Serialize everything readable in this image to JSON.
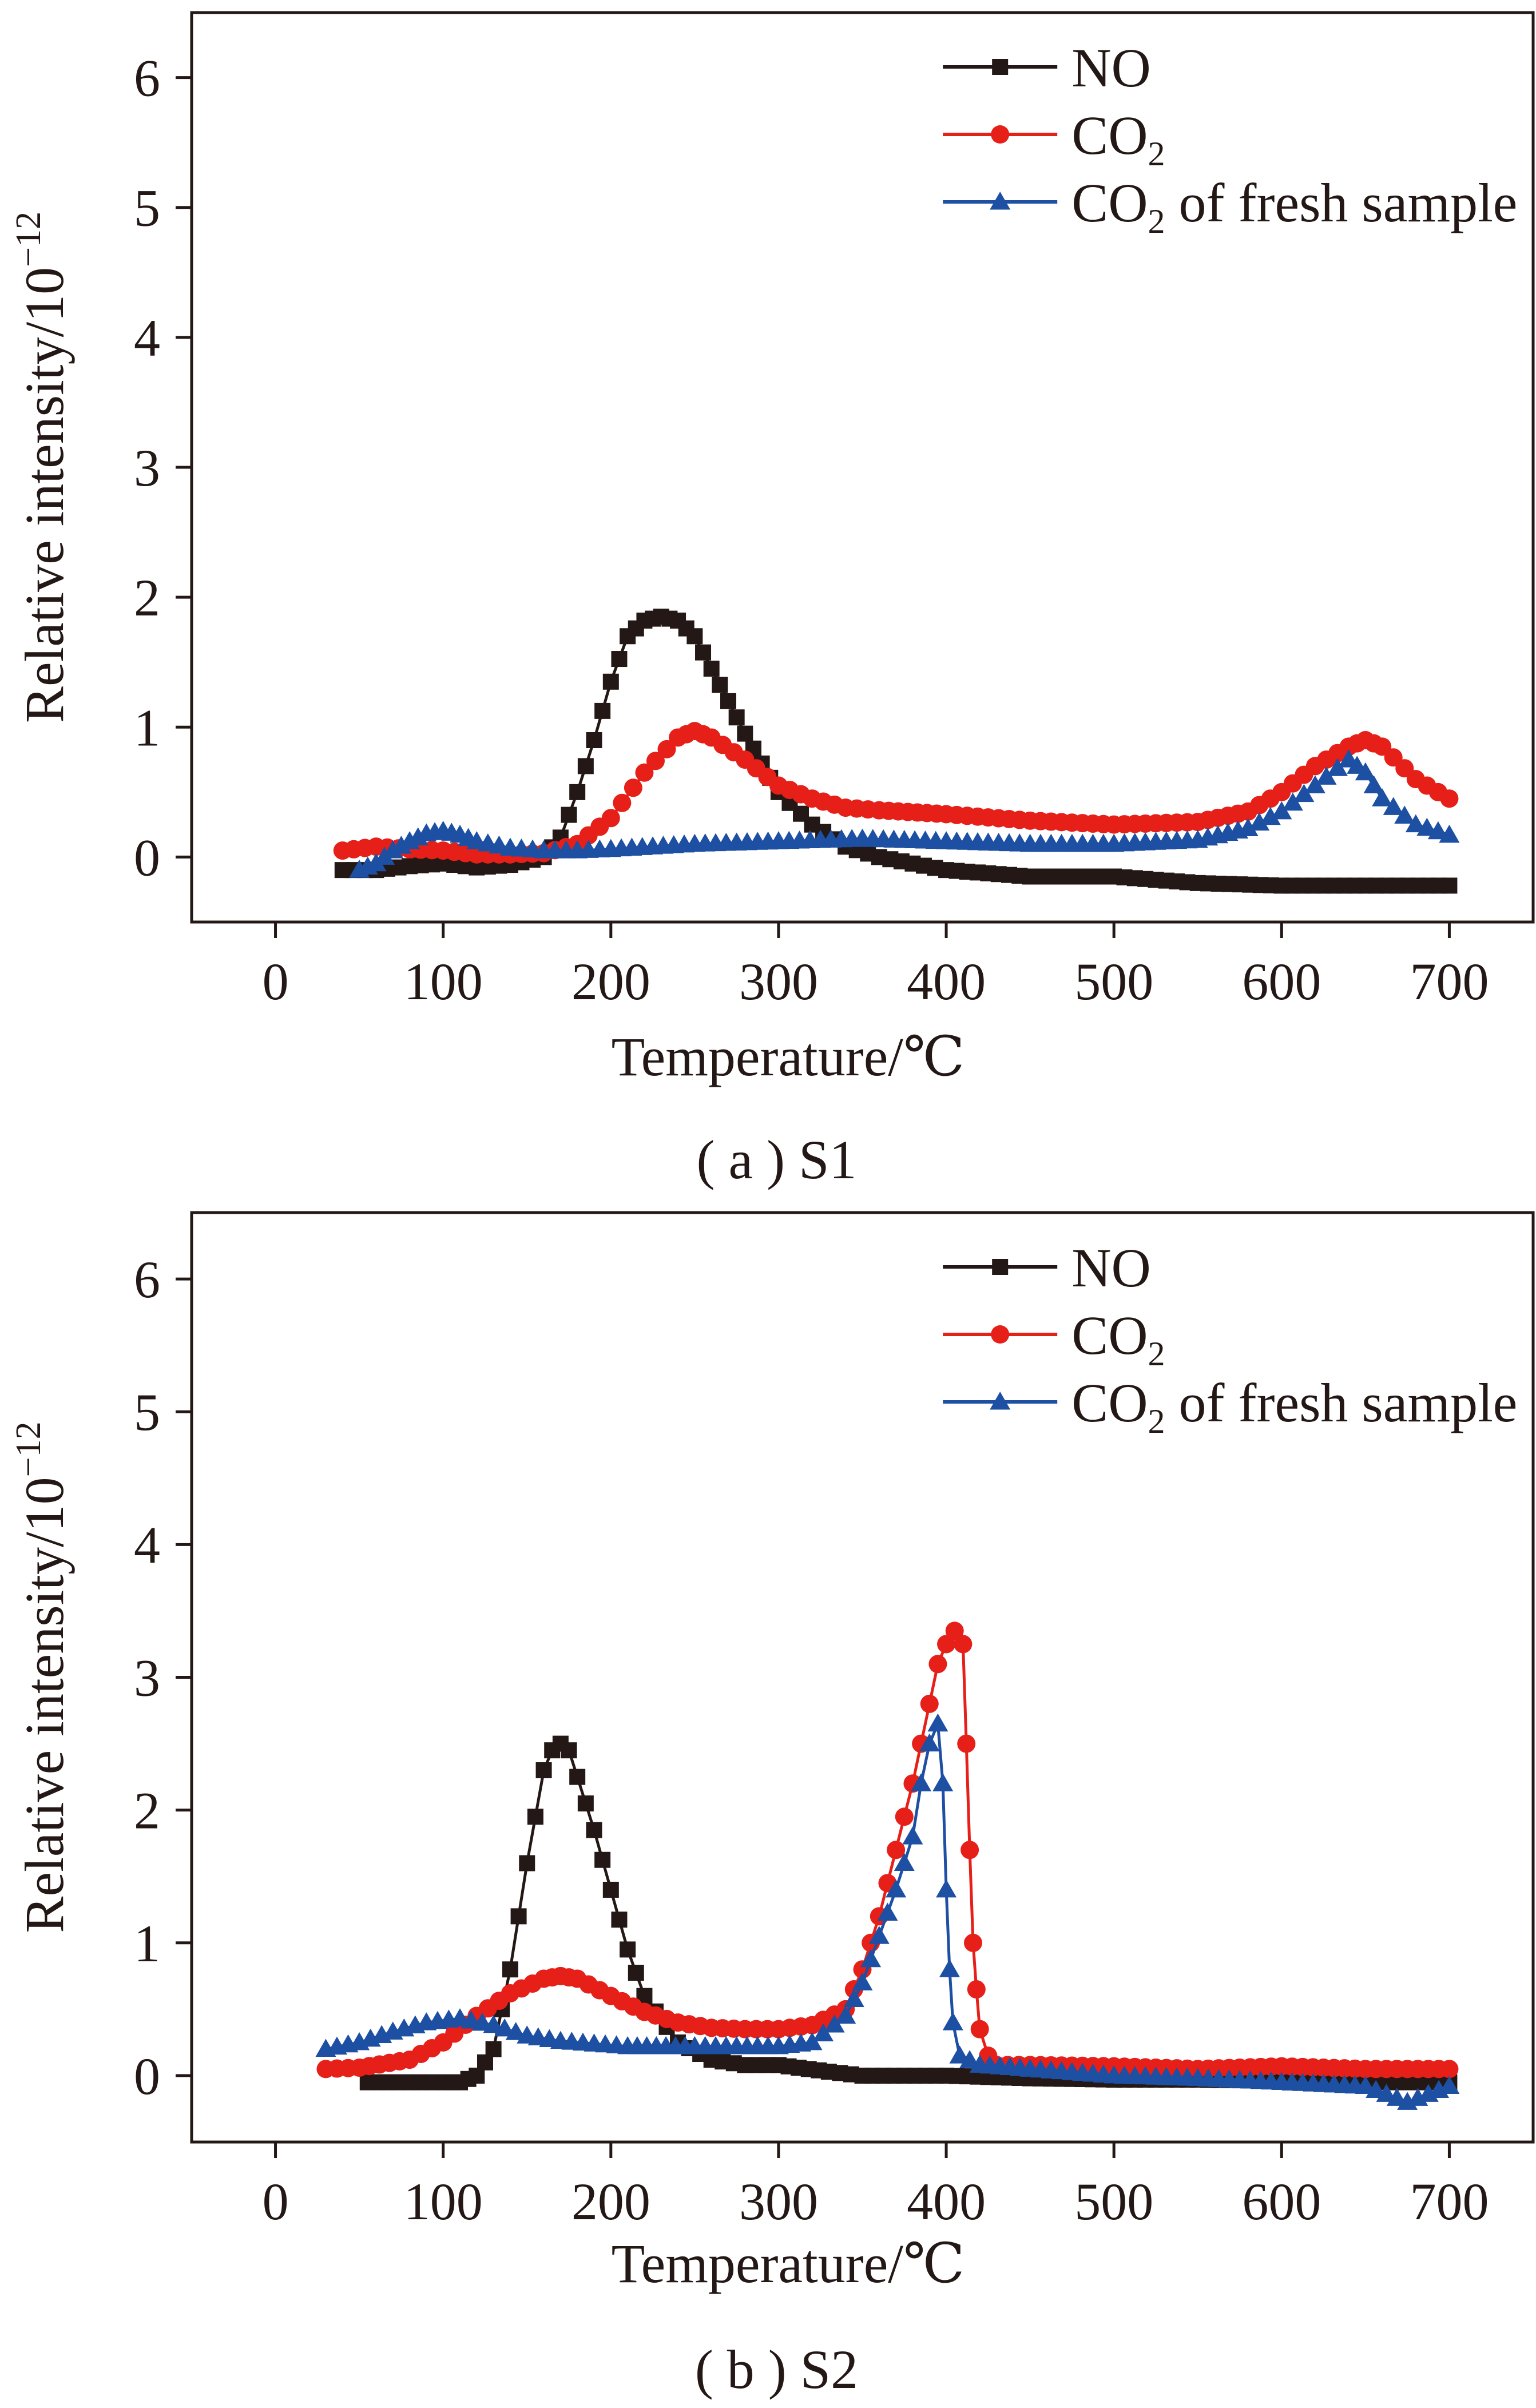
{
  "chart_data": [
    {
      "type": "scatter",
      "panel_caption": "( a ) S1",
      "xlabel": "Temperature/℃",
      "ylabel_main": "Relative intensity/10",
      "ylabel_exp": "−12",
      "xlim": [
        -50,
        750
      ],
      "ylim": [
        -0.5,
        6.5
      ],
      "xticks": [
        0,
        100,
        200,
        300,
        400,
        500,
        600,
        700
      ],
      "yticks": [
        0,
        1,
        2,
        3,
        4,
        5,
        6
      ],
      "grid": false,
      "legend_position": "top-right",
      "series": [
        {
          "name": "NO",
          "marker": "square",
          "color": "#231815",
          "points": [
            [
              40,
              -0.1
            ],
            [
              60,
              -0.1
            ],
            [
              80,
              -0.07
            ],
            [
              100,
              -0.05
            ],
            [
              120,
              -0.08
            ],
            [
              140,
              -0.06
            ],
            [
              160,
              0.0
            ],
            [
              170,
              0.15
            ],
            [
              180,
              0.5
            ],
            [
              190,
              0.9
            ],
            [
              200,
              1.35
            ],
            [
              210,
              1.7
            ],
            [
              220,
              1.82
            ],
            [
              230,
              1.85
            ],
            [
              240,
              1.82
            ],
            [
              250,
              1.7
            ],
            [
              260,
              1.45
            ],
            [
              270,
              1.2
            ],
            [
              280,
              0.95
            ],
            [
              290,
              0.72
            ],
            [
              300,
              0.5
            ],
            [
              320,
              0.25
            ],
            [
              340,
              0.08
            ],
            [
              360,
              0.0
            ],
            [
              380,
              -0.05
            ],
            [
              400,
              -0.1
            ],
            [
              450,
              -0.15
            ],
            [
              500,
              -0.15
            ],
            [
              550,
              -0.2
            ],
            [
              600,
              -0.22
            ],
            [
              650,
              -0.22
            ],
            [
              700,
              -0.22
            ]
          ]
        },
        {
          "name": "CO₂",
          "marker": "circle",
          "color": "#e61f19",
          "points": [
            [
              40,
              0.05
            ],
            [
              60,
              0.08
            ],
            [
              80,
              0.06
            ],
            [
              100,
              0.05
            ],
            [
              120,
              0.02
            ],
            [
              140,
              0.02
            ],
            [
              160,
              0.03
            ],
            [
              180,
              0.1
            ],
            [
              200,
              0.3
            ],
            [
              220,
              0.65
            ],
            [
              240,
              0.92
            ],
            [
              250,
              0.97
            ],
            [
              260,
              0.92
            ],
            [
              280,
              0.75
            ],
            [
              300,
              0.55
            ],
            [
              320,
              0.45
            ],
            [
              340,
              0.38
            ],
            [
              360,
              0.36
            ],
            [
              400,
              0.33
            ],
            [
              450,
              0.28
            ],
            [
              500,
              0.25
            ],
            [
              550,
              0.27
            ],
            [
              580,
              0.35
            ],
            [
              600,
              0.5
            ],
            [
              620,
              0.7
            ],
            [
              640,
              0.85
            ],
            [
              650,
              0.9
            ],
            [
              660,
              0.85
            ],
            [
              680,
              0.6
            ],
            [
              700,
              0.45
            ]
          ]
        },
        {
          "name": "CO₂ of fresh sample",
          "marker": "triangle",
          "color": "#1d4fa3",
          "points": [
            [
              50,
              -0.1
            ],
            [
              60,
              -0.05
            ],
            [
              70,
              0.05
            ],
            [
              80,
              0.12
            ],
            [
              90,
              0.18
            ],
            [
              100,
              0.2
            ],
            [
              110,
              0.17
            ],
            [
              120,
              0.12
            ],
            [
              140,
              0.07
            ],
            [
              160,
              0.05
            ],
            [
              180,
              0.05
            ],
            [
              200,
              0.06
            ],
            [
              250,
              0.1
            ],
            [
              300,
              0.12
            ],
            [
              350,
              0.14
            ],
            [
              400,
              0.12
            ],
            [
              450,
              0.1
            ],
            [
              500,
              0.1
            ],
            [
              550,
              0.13
            ],
            [
              580,
              0.22
            ],
            [
              600,
              0.35
            ],
            [
              620,
              0.55
            ],
            [
              640,
              0.75
            ],
            [
              650,
              0.65
            ],
            [
              660,
              0.45
            ],
            [
              680,
              0.25
            ],
            [
              700,
              0.17
            ]
          ]
        }
      ]
    },
    {
      "type": "scatter",
      "panel_caption": "( b ) S2",
      "xlabel": "Temperature/℃",
      "ylabel_main": "Relative intensity/10",
      "ylabel_exp": "−12",
      "xlim": [
        -50,
        750
      ],
      "ylim": [
        -0.5,
        6.5
      ],
      "xticks": [
        0,
        100,
        200,
        300,
        400,
        500,
        600,
        700
      ],
      "yticks": [
        0,
        1,
        2,
        3,
        4,
        5,
        6
      ],
      "grid": false,
      "legend_position": "top-right",
      "series": [
        {
          "name": "NO",
          "marker": "square",
          "color": "#231815",
          "points": [
            [
              55,
              -0.05
            ],
            [
              80,
              -0.05
            ],
            [
              100,
              -0.05
            ],
            [
              110,
              -0.05
            ],
            [
              120,
              0.0
            ],
            [
              130,
              0.2
            ],
            [
              140,
              0.8
            ],
            [
              150,
              1.6
            ],
            [
              160,
              2.3
            ],
            [
              165,
              2.45
            ],
            [
              170,
              2.5
            ],
            [
              175,
              2.45
            ],
            [
              180,
              2.25
            ],
            [
              190,
              1.85
            ],
            [
              200,
              1.4
            ],
            [
              210,
              0.95
            ],
            [
              220,
              0.6
            ],
            [
              240,
              0.25
            ],
            [
              260,
              0.12
            ],
            [
              280,
              0.08
            ],
            [
              300,
              0.08
            ],
            [
              330,
              0.03
            ],
            [
              350,
              0.0
            ],
            [
              400,
              0.0
            ],
            [
              450,
              -0.02
            ],
            [
              500,
              -0.03
            ],
            [
              550,
              -0.03
            ],
            [
              600,
              -0.04
            ],
            [
              650,
              -0.05
            ],
            [
              700,
              -0.05
            ]
          ]
        },
        {
          "name": "CO₂",
          "marker": "circle",
          "color": "#e61f19",
          "points": [
            [
              30,
              0.05
            ],
            [
              50,
              0.06
            ],
            [
              80,
              0.12
            ],
            [
              100,
              0.25
            ],
            [
              120,
              0.45
            ],
            [
              140,
              0.62
            ],
            [
              160,
              0.73
            ],
            [
              170,
              0.75
            ],
            [
              180,
              0.73
            ],
            [
              200,
              0.6
            ],
            [
              220,
              0.48
            ],
            [
              240,
              0.4
            ],
            [
              260,
              0.36
            ],
            [
              280,
              0.35
            ],
            [
              300,
              0.35
            ],
            [
              320,
              0.38
            ],
            [
              340,
              0.5
            ],
            [
              350,
              0.8
            ],
            [
              360,
              1.2
            ],
            [
              370,
              1.7
            ],
            [
              380,
              2.2
            ],
            [
              390,
              2.8
            ],
            [
              395,
              3.1
            ],
            [
              400,
              3.25
            ],
            [
              405,
              3.35
            ],
            [
              410,
              3.25
            ],
            [
              412,
              2.5
            ],
            [
              414,
              1.7
            ],
            [
              416,
              1.0
            ],
            [
              418,
              0.65
            ],
            [
              420,
              0.35
            ],
            [
              425,
              0.15
            ],
            [
              430,
              0.08
            ],
            [
              450,
              0.08
            ],
            [
              500,
              0.07
            ],
            [
              550,
              0.05
            ],
            [
              600,
              0.07
            ],
            [
              650,
              0.05
            ],
            [
              700,
              0.05
            ]
          ]
        },
        {
          "name": "CO₂ of fresh sample",
          "marker": "triangle",
          "color": "#1d4fa3",
          "points": [
            [
              30,
              0.2
            ],
            [
              50,
              0.25
            ],
            [
              70,
              0.33
            ],
            [
              90,
              0.4
            ],
            [
              110,
              0.43
            ],
            [
              130,
              0.38
            ],
            [
              150,
              0.3
            ],
            [
              170,
              0.26
            ],
            [
              190,
              0.24
            ],
            [
              210,
              0.22
            ],
            [
              250,
              0.22
            ],
            [
              300,
              0.22
            ],
            [
              320,
              0.25
            ],
            [
              340,
              0.45
            ],
            [
              350,
              0.7
            ],
            [
              360,
              1.05
            ],
            [
              370,
              1.4
            ],
            [
              380,
              1.8
            ],
            [
              385,
              2.2
            ],
            [
              390,
              2.5
            ],
            [
              395,
              2.65
            ],
            [
              398,
              2.2
            ],
            [
              400,
              1.4
            ],
            [
              402,
              0.8
            ],
            [
              404,
              0.4
            ],
            [
              408,
              0.15
            ],
            [
              420,
              0.08
            ],
            [
              450,
              0.05
            ],
            [
              500,
              0.0
            ],
            [
              550,
              -0.02
            ],
            [
              600,
              -0.05
            ],
            [
              650,
              -0.08
            ],
            [
              675,
              -0.2
            ],
            [
              700,
              -0.08
            ]
          ]
        }
      ]
    }
  ]
}
